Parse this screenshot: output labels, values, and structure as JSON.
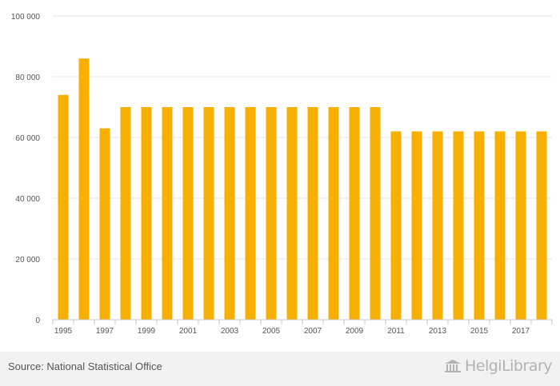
{
  "chart_data": {
    "type": "bar",
    "categories": [
      "1995",
      "1996",
      "1997",
      "1998",
      "1999",
      "2000",
      "2001",
      "2002",
      "2003",
      "2004",
      "2005",
      "2006",
      "2007",
      "2008",
      "2009",
      "2010",
      "2011",
      "2012",
      "2013",
      "2014",
      "2015",
      "2016",
      "2017",
      "2018"
    ],
    "x_tick_labels": [
      "1995",
      "1997",
      "1999",
      "2001",
      "2003",
      "2005",
      "2007",
      "2009",
      "2011",
      "2013",
      "2015",
      "2017"
    ],
    "values": [
      74000,
      86000,
      63000,
      70000,
      70000,
      70000,
      70000,
      70000,
      70000,
      70000,
      70000,
      70000,
      70000,
      70000,
      70000,
      70000,
      62000,
      62000,
      62000,
      62000,
      62000,
      62000,
      62000,
      62000
    ],
    "ylim": [
      0,
      100000
    ],
    "y_ticks": [
      0,
      20000,
      40000,
      60000,
      80000,
      100000
    ],
    "y_tick_labels": [
      "0",
      "20 000",
      "40 000",
      "60 000",
      "80 000",
      "100 000"
    ],
    "title": "",
    "xlabel": "",
    "ylabel": "",
    "grid": true,
    "bar_color": "#f7af00",
    "grid_color": "#e6e6e6"
  },
  "footer": {
    "source": "Source: National Statistical Office",
    "logo_text": "HelgiLibrary"
  }
}
